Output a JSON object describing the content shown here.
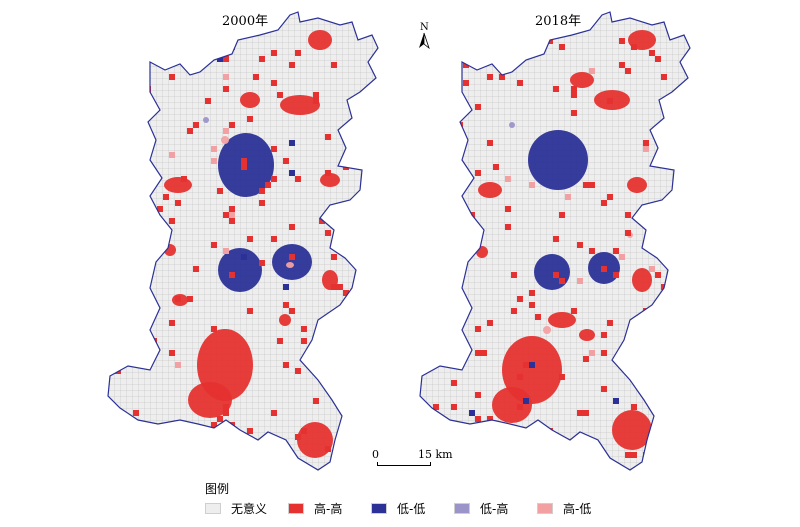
{
  "maps": [
    {
      "title": "2000年",
      "cluster_variant": "2000"
    },
    {
      "title": "2018年",
      "cluster_variant": "2018"
    }
  ],
  "north_label": "N",
  "scale": {
    "zero": "0",
    "distance": "15 km"
  },
  "legend": {
    "title": "图例",
    "items": [
      {
        "label": "无意义",
        "color": "#eeeeee"
      },
      {
        "label": "高-高",
        "color": "#e5312f"
      },
      {
        "label": "低-低",
        "color": "#2b3196"
      },
      {
        "label": "低-高",
        "color": "#9b94c9"
      },
      {
        "label": "高-低",
        "color": "#f3a0a2"
      }
    ]
  },
  "colors": {
    "not_significant": "#eeeeee",
    "grid_line": "#b9b9b9",
    "high_high": "#e5312f",
    "low_low": "#2b3196",
    "low_high": "#9b94c9",
    "high_low": "#f3a0a2"
  }
}
